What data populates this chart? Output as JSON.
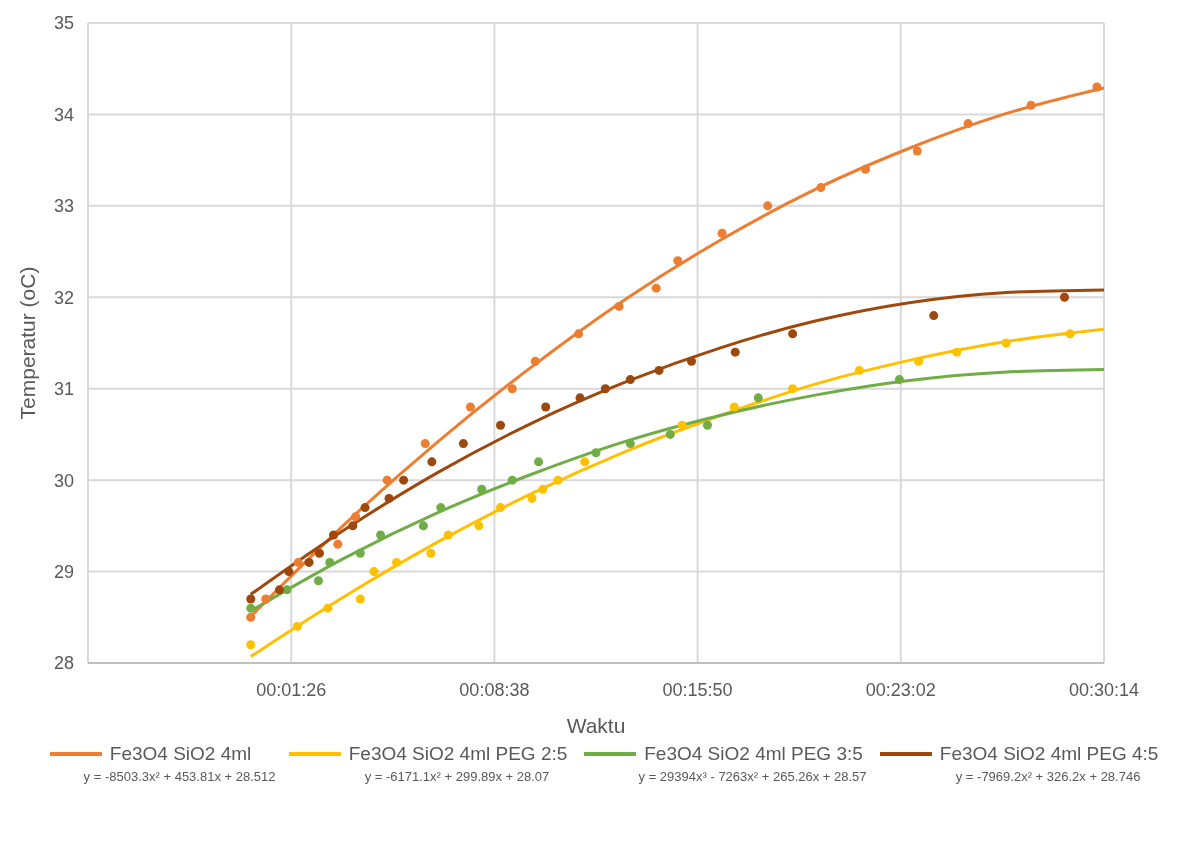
{
  "chart_data": {
    "type": "scatter",
    "xlabel": "Waktu",
    "ylabel": "Temperatur (oC)",
    "xlim": [
      -346,
      1814
    ],
    "xticks": [
      {
        "value": 86,
        "label": "00:01:26"
      },
      {
        "value": 518,
        "label": "00:08:38"
      },
      {
        "value": 950,
        "label": "00:15:50"
      },
      {
        "value": 1382,
        "label": "00:23:02"
      },
      {
        "value": 1814,
        "label": "00:30:14"
      }
    ],
    "ylim": [
      28,
      35
    ],
    "yticks": [
      28,
      29,
      30,
      31,
      32,
      33,
      34,
      35
    ],
    "grid": true,
    "legend": "bottom",
    "marker": "circle",
    "annotations": [
      "y = -8503.3x² + 453.81x + 28.512",
      "y = -6171.1x² + 299.89x + 28.07",
      "y = 29394x³ - 7263x² + 265.26x + 28.57",
      "y = -7969.2x² + 326.2x + 28.746"
    ],
    "series": [
      {
        "color": "#ed7d31",
        "x": [
          0,
          32,
          101,
          185,
          223,
          290,
          371,
          467,
          556,
          605,
          697,
          783,
          862,
          908,
          1002,
          1099,
          1212,
          1307,
          1417,
          1525,
          1659,
          1799
        ],
        "values": [
          28.5,
          28.7,
          29.1,
          29.3,
          29.6,
          30.0,
          30.4,
          30.8,
          31.0,
          31.3,
          31.6,
          31.9,
          32.1,
          32.4,
          32.7,
          33.0,
          33.2,
          33.4,
          33.6,
          33.9,
          34.1,
          34.3
        ]
      },
      {
        "color": "#ffc000",
        "x": [
          0,
          99,
          164,
          233,
          262,
          310,
          383,
          420,
          485,
          531,
          598,
          621,
          653,
          710,
          917,
          1028,
          1152,
          1294,
          1420,
          1501,
          1606,
          1742
        ],
        "values": [
          28.2,
          28.4,
          28.6,
          28.7,
          29.0,
          29.1,
          29.2,
          29.4,
          29.5,
          29.7,
          29.8,
          29.9,
          30.0,
          30.2,
          30.6,
          30.8,
          31.0,
          31.2,
          31.3,
          31.4,
          31.5,
          31.6
        ]
      },
      {
        "color": "#70ad47",
        "x": [
          0,
          77,
          144,
          168,
          233,
          276,
          367,
          404,
          491,
          556,
          612,
          734,
          807,
          892,
          971,
          1079,
          1379
        ],
        "values": [
          28.6,
          28.8,
          28.9,
          29.1,
          29.2,
          29.4,
          29.5,
          29.7,
          29.9,
          30.0,
          30.2,
          30.3,
          30.4,
          30.5,
          30.6,
          30.9,
          31.1
        ]
      },
      {
        "color": "#9e480e",
        "x": [
          0,
          61,
          81,
          124,
          146,
          176,
          217,
          243,
          294,
          325,
          385,
          452,
          531,
          627,
          700,
          754,
          807,
          868,
          937,
          1030,
          1152,
          1452,
          1730
        ],
        "values": [
          28.7,
          28.8,
          29.0,
          29.1,
          29.2,
          29.4,
          29.5,
          29.7,
          29.8,
          30.0,
          30.2,
          30.4,
          30.6,
          30.8,
          30.9,
          31.0,
          31.1,
          31.2,
          31.3,
          31.4,
          31.6,
          31.8,
          32.0
        ]
      },
      {
        "type": "line",
        "marker": "none",
        "name": "Fe3O4 SiO2 4ml",
        "color": "#ed7d31",
        "x": [
          0,
          200,
          400,
          600,
          800,
          1000,
          1200,
          1400,
          1600,
          1814
        ],
        "values": [
          28.51,
          29.52,
          30.43,
          31.25,
          31.99,
          32.63,
          33.18,
          33.63,
          34.0,
          34.29
        ]
      },
      {
        "type": "line",
        "marker": "none",
        "name": "Fe3O4 SiO2 4ml PEG 2:5",
        "color": "#ffc000",
        "x": [
          0,
          200,
          400,
          600,
          800,
          1000,
          1200,
          1400,
          1600,
          1814
        ],
        "values": [
          28.07,
          28.73,
          29.33,
          29.86,
          30.32,
          30.71,
          31.05,
          31.31,
          31.51,
          31.65
        ]
      },
      {
        "type": "line",
        "marker": "none",
        "name": "Fe3O4 SiO2 4ml PEG 3:5",
        "color": "#70ad47",
        "x": [
          0,
          200,
          400,
          600,
          800,
          1000,
          1200,
          1400,
          1600,
          1814
        ],
        "values": [
          28.57,
          29.15,
          29.65,
          30.07,
          30.43,
          30.71,
          30.93,
          31.09,
          31.18,
          31.21
        ]
      },
      {
        "type": "line",
        "marker": "none",
        "name": "Fe3O4 SiO2 4ml PEG 4:5",
        "color": "#9e480e",
        "x": [
          0,
          200,
          400,
          600,
          800,
          1000,
          1200,
          1400,
          1600,
          1814
        ],
        "values": [
          28.75,
          29.46,
          30.09,
          30.63,
          31.08,
          31.45,
          31.74,
          31.94,
          32.05,
          32.08
        ]
      }
    ]
  }
}
